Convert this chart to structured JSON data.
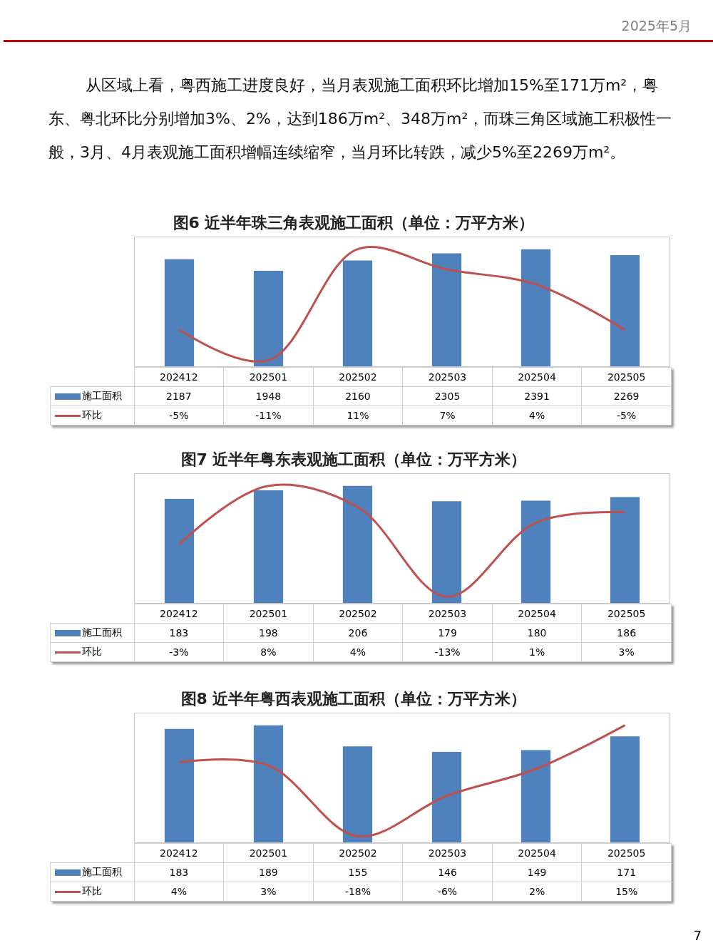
{
  "chart_data": [
    {
      "type": "bar",
      "title": "图6 近半年珠三角表观施工面积（单位：万平方米）",
      "annotations": [
        "2025年5月",
        "从区域上看，粤西施工进度良好，当月表观施工面积环比增加15%至171万m²，粤东、粤北环比分别增加3%、2%，达到186万m²、348万m²，而珠三角区域施工积极性一般，3月、4月表观施工面积增幅连续缩窄，当月环比转跌，减少5%至2269万m²。"
      ],
      "categories": [
        "202412",
        "202501",
        "202502",
        "202503",
        "202504",
        "202505"
      ],
      "data_labels": true,
      "legend": "left",
      "tick_labels": false,
      "series": [
        {
          "name": "施工面积",
          "type": "bar",
          "color": "#4f81bd",
          "values": [
            2187,
            1948,
            2160,
            2305,
            2391,
            2269
          ]
        },
        {
          "name": "环比",
          "type": "line",
          "axis": "y2",
          "color": "#c0504d",
          "values": [
            -5,
            -11,
            11,
            7,
            4,
            -5
          ],
          "value_labels": [
            "-5%",
            "-11%",
            "11%",
            "7%",
            "4%",
            "-5%"
          ]
        }
      ]
    },
    {
      "type": "bar",
      "title": "图7 近半年粤东表观施工面积（单位：万平方米）",
      "categories": [
        "202412",
        "202501",
        "202502",
        "202503",
        "202504",
        "202505"
      ],
      "data_labels": true,
      "legend": "left",
      "tick_labels": false,
      "series": [
        {
          "name": "施工面积",
          "type": "bar",
          "color": "#4f81bd",
          "values": [
            183,
            198,
            206,
            179,
            180,
            186
          ]
        },
        {
          "name": "环比",
          "type": "line",
          "axis": "y2",
          "color": "#c0504d",
          "values": [
            -3,
            8,
            4,
            -13,
            1,
            3
          ],
          "value_labels": [
            "-3%",
            "8%",
            "4%",
            "-13%",
            "1%",
            "3%"
          ]
        }
      ]
    },
    {
      "type": "bar",
      "title": "图8 近半年粤西表观施工面积（单位：万平方米）",
      "annotations": [
        "7"
      ],
      "categories": [
        "202412",
        "202501",
        "202502",
        "202503",
        "202504",
        "202505"
      ],
      "data_labels": true,
      "legend": "left",
      "tick_labels": false,
      "series": [
        {
          "name": "施工面积",
          "type": "bar",
          "color": "#4f81bd",
          "values": [
            183,
            189,
            155,
            146,
            149,
            171
          ]
        },
        {
          "name": "环比",
          "type": "line",
          "axis": "y2",
          "color": "#c0504d",
          "values": [
            4,
            3,
            -18,
            -6,
            2,
            15
          ],
          "value_labels": [
            "4%",
            "3%",
            "-18%",
            "-6%",
            "2%",
            "15%"
          ]
        }
      ]
    }
  ]
}
